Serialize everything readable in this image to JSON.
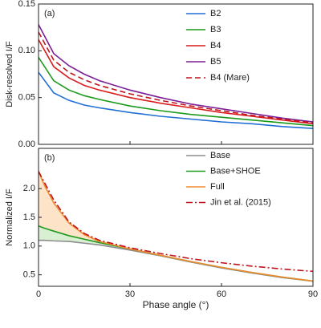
{
  "chart_data": [
    {
      "type": "line",
      "panel_label": "(a)",
      "ylabel": "Disk-resolved I/F",
      "x": [
        0,
        5,
        10,
        15,
        20,
        30,
        40,
        50,
        60,
        70,
        80,
        90
      ],
      "xlim": [
        0,
        90
      ],
      "xticks": [
        0,
        30,
        60,
        90
      ],
      "ylim": [
        0,
        0.15
      ],
      "yticks": [
        {
          "value": 0,
          "label": "0.00"
        },
        {
          "value": 0.05,
          "label": "0.05"
        },
        {
          "value": 0.1,
          "label": "0.10"
        },
        {
          "value": 0.15,
          "label": "0.15"
        }
      ],
      "legend": "upper right",
      "series": [
        {
          "name": "B2",
          "color": "#1f6fd6",
          "values": [
            0.077,
            0.055,
            0.047,
            0.042,
            0.039,
            0.034,
            0.03,
            0.027,
            0.024,
            0.022,
            0.019,
            0.017
          ]
        },
        {
          "name": "B3",
          "color": "#1a9a1a",
          "values": [
            0.093,
            0.068,
            0.058,
            0.052,
            0.048,
            0.041,
            0.036,
            0.032,
            0.029,
            0.026,
            0.023,
            0.02
          ]
        },
        {
          "name": "B4",
          "color": "#d91c1c",
          "values": [
            0.112,
            0.083,
            0.071,
            0.063,
            0.058,
            0.05,
            0.044,
            0.039,
            0.034,
            0.03,
            0.026,
            0.022
          ]
        },
        {
          "name": "B5",
          "color": "#7b1e96",
          "values": [
            0.128,
            0.097,
            0.084,
            0.075,
            0.068,
            0.058,
            0.05,
            0.043,
            0.038,
            0.033,
            0.028,
            0.024
          ]
        },
        {
          "name": "B4 (Mare)",
          "color": "#c0141c",
          "dash": "dashed",
          "values": [
            0.12,
            0.09,
            0.077,
            0.069,
            0.063,
            0.054,
            0.047,
            0.041,
            0.036,
            0.031,
            0.027,
            0.023
          ]
        }
      ]
    },
    {
      "type": "line",
      "panel_label": "(b)",
      "ylabel": "Normalized I/F",
      "xlabel": "Phase angle (°)",
      "x": [
        0,
        2,
        5,
        10,
        15,
        20,
        30,
        40,
        50,
        60,
        70,
        80,
        90
      ],
      "xlim": [
        0,
        90
      ],
      "xticks": [
        0,
        30,
        60,
        90
      ],
      "ylim": [
        0.3,
        2.7
      ],
      "yticks": [
        {
          "value": 0.5,
          "label": "0.5"
        },
        {
          "value": 1,
          "label": "1.0"
        },
        {
          "value": 1.5,
          "label": "1.5"
        },
        {
          "value": 2,
          "label": "2.0"
        }
      ],
      "legend": "upper right",
      "series": [
        {
          "name": "Base",
          "color": "#8c8c8c",
          "values": [
            1.1,
            1.1,
            1.09,
            1.08,
            1.05,
            1.02,
            0.93,
            0.83,
            0.72,
            0.62,
            0.53,
            0.45,
            0.39
          ]
        },
        {
          "name": "Base+SHOE",
          "color": "#1e9a1e",
          "shade_below": "#d8efd2",
          "values": [
            1.35,
            1.31,
            1.26,
            1.18,
            1.12,
            1.06,
            0.95,
            0.84,
            0.73,
            0.63,
            0.54,
            0.46,
            0.39
          ]
        },
        {
          "name": "Full",
          "color": "#f08a30",
          "shade_below": "#fde3c8",
          "values": [
            2.3,
            2.05,
            1.75,
            1.4,
            1.2,
            1.08,
            0.95,
            0.84,
            0.73,
            0.63,
            0.54,
            0.46,
            0.39
          ]
        },
        {
          "name": "Jin et al. (2015)",
          "color": "#c0141c",
          "dash": "dashdot",
          "values": [
            2.3,
            2.1,
            1.8,
            1.42,
            1.22,
            1.1,
            0.97,
            0.87,
            0.78,
            0.71,
            0.65,
            0.6,
            0.56
          ]
        }
      ]
    }
  ]
}
